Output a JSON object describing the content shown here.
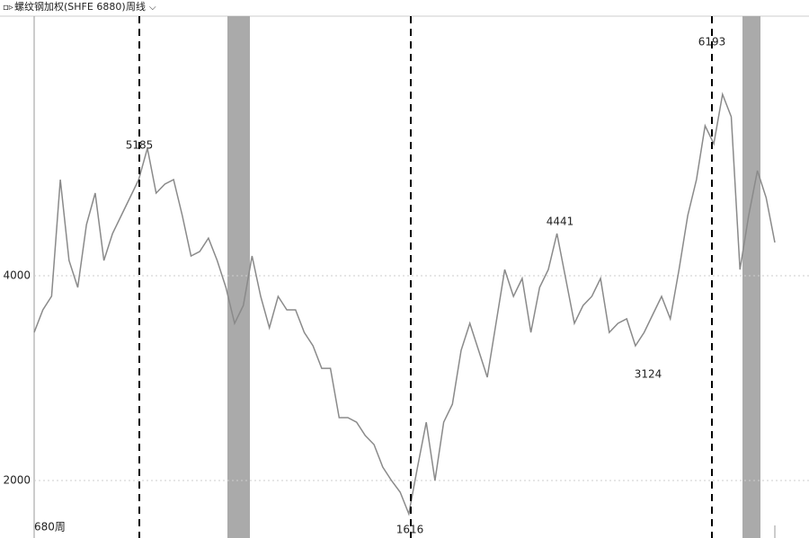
{
  "chart_data": {
    "type": "line",
    "title": "螺纹钢加权(SHFE 6880)",
    "period": "周线",
    "bar_count": "680周",
    "color": "#8a8a8a",
    "values": [
      3447,
      3667,
      3800,
      4939,
      4149,
      3886,
      4500,
      4807,
      4149,
      4412,
      4588,
      4763,
      4939,
      5245,
      4807,
      4895,
      4939,
      4588,
      4193,
      4237,
      4368,
      4149,
      3886,
      3535,
      3710,
      4193,
      3798,
      3491,
      3798,
      3667,
      3667,
      3447,
      3316,
      3096,
      3096,
      2614,
      2614,
      2570,
      2439,
      2351,
      2132,
      2000,
      1886,
      1675,
      2132,
      2570,
      2000,
      2570,
      2746,
      3272,
      3535,
      3272,
      3009,
      3535,
      4061,
      3798,
      3974,
      3447,
      3886,
      4061,
      4412,
      3974,
      3535,
      3710,
      3798,
      3974,
      3447,
      3535,
      3579,
      3316,
      3447,
      3623,
      3798,
      3579,
      4061,
      4588,
      4939,
      5465,
      5289,
      5772,
      5553,
      4061,
      4588,
      5026,
      4763,
      4325
    ],
    "ylim": [
      1439,
      6535
    ],
    "yticks": [
      2000,
      4000
    ],
    "grid": true,
    "annotations": [
      "5185",
      "4441",
      "3124",
      "6193",
      "1616"
    ]
  }
}
